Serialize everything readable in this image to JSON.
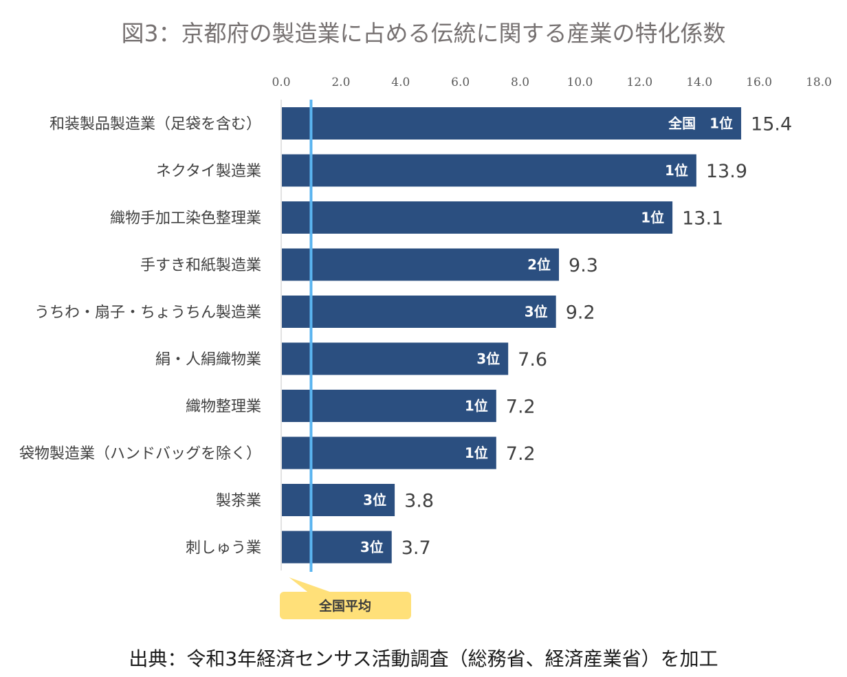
{
  "chart_data": {
    "type": "bar",
    "orientation": "horizontal",
    "title": "図3：京都府の製造業に占める伝統に関する産業の特化係数",
    "categories": [
      "和装製品製造業（足袋を含む）",
      "ネクタイ製造業",
      "織物手加工染色整理業",
      "手すき和紙製造業",
      "うちわ・扇子・ちょうちん製造業",
      "絹・人絹織物業",
      "織物整理業",
      "袋物製造業（ハンドバッグを除く）",
      "製茶業",
      "刺しゅう業"
    ],
    "values": [
      15.4,
      13.9,
      13.1,
      9.3,
      9.2,
      7.6,
      7.2,
      7.2,
      3.8,
      3.7
    ],
    "value_labels": [
      "15.4",
      "13.9",
      "13.1",
      "9.3",
      "9.2",
      "7.6",
      "7.2",
      "7.2",
      "3.8",
      "3.7"
    ],
    "rank_labels": [
      "全国　1位",
      "1位",
      "1位",
      "2位",
      "3位",
      "3位",
      "1位",
      "1位",
      "3位",
      "3位"
    ],
    "xlim": [
      0,
      18
    ],
    "xticks": [
      "0.0",
      "2.0",
      "4.0",
      "6.0",
      "8.0",
      "10.0",
      "12.0",
      "14.0",
      "16.0",
      "18.0"
    ],
    "xtick_values": [
      0,
      2,
      4,
      6,
      8,
      10,
      12,
      14,
      16,
      18
    ],
    "axis_position": "top",
    "grid": false,
    "reference_line": {
      "value": 1.0,
      "label": "全国平均",
      "color": "#5ab4f0"
    },
    "bar_color": "#2b4f80",
    "callout_color": "#ffe079",
    "source": "出典：令和3年経済センサス活動調査（総務省、経済産業省）を加工"
  }
}
